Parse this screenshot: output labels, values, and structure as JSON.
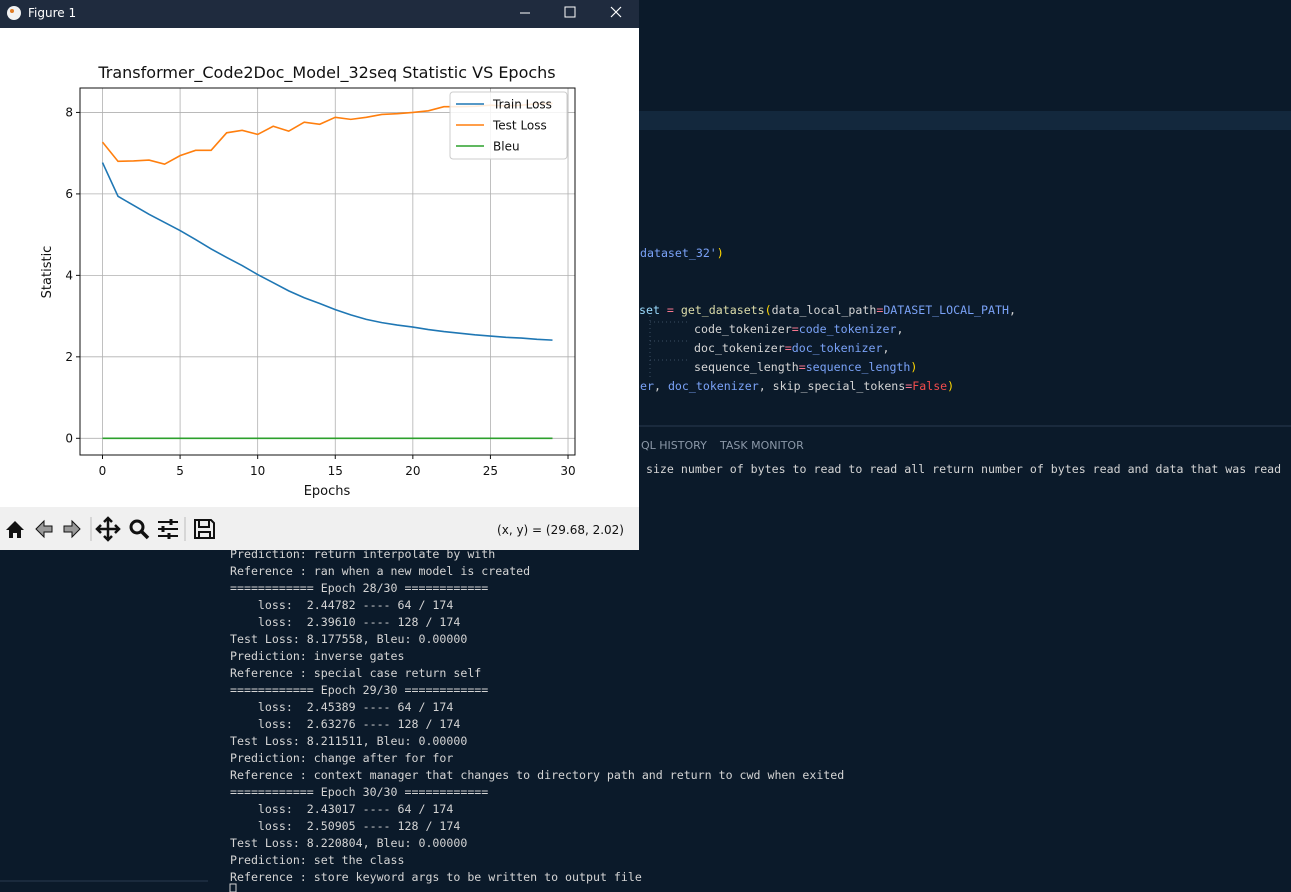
{
  "window": {
    "title": "Figure 1",
    "coordinates": "(x, y) = (29.68, 2.02)"
  },
  "chart_data": {
    "type": "line",
    "title": "Transformer_Code2Doc_Model_32seq Statistic VS Epochs",
    "xlabel": "Epochs",
    "ylabel": "Statistic",
    "x": [
      0,
      1,
      2,
      3,
      4,
      5,
      6,
      7,
      8,
      9,
      10,
      11,
      12,
      13,
      14,
      15,
      16,
      17,
      18,
      19,
      20,
      21,
      22,
      23,
      24,
      25,
      26,
      27,
      28,
      29
    ],
    "series": [
      {
        "name": "Train Loss",
        "color": "#1f77b4",
        "values": [
          6.77,
          5.94,
          5.72,
          5.5,
          5.3,
          5.1,
          4.88,
          4.65,
          4.44,
          4.24,
          4.02,
          3.82,
          3.62,
          3.45,
          3.31,
          3.16,
          3.03,
          2.92,
          2.84,
          2.78,
          2.73,
          2.67,
          2.62,
          2.58,
          2.54,
          2.51,
          2.48,
          2.46,
          2.43,
          2.41
        ]
      },
      {
        "name": "Test Loss",
        "color": "#ff7f0e",
        "values": [
          7.27,
          6.8,
          6.81,
          6.83,
          6.73,
          6.94,
          7.07,
          7.07,
          7.5,
          7.56,
          7.46,
          7.66,
          7.54,
          7.76,
          7.71,
          7.88,
          7.83,
          7.88,
          7.95,
          7.97,
          8.0,
          8.04,
          8.14,
          8.14,
          8.15,
          8.178,
          8.16,
          8.178,
          8.212,
          8.221
        ]
      },
      {
        "name": "Bleu",
        "color": "#2ca02c",
        "values": [
          0,
          0,
          0,
          0,
          0,
          0,
          0,
          0,
          0,
          0,
          0,
          0,
          0,
          0,
          0,
          0,
          0,
          0,
          0,
          0,
          0,
          0,
          0,
          0,
          0,
          0,
          0,
          0,
          0,
          0
        ]
      }
    ],
    "xlim": [
      -1.45,
      30.45
    ],
    "ylim": [
      -0.41,
      8.6
    ],
    "xticks": [
      0,
      5,
      10,
      15,
      20,
      25,
      30
    ],
    "yticks": [
      0,
      2,
      4,
      6,
      8
    ],
    "grid": true,
    "legend": "upper right"
  },
  "editor": {
    "lines": [
      [
        {
          "text": "dataset_32'",
          "color": "#7aa2f7"
        },
        {
          "text": ")",
          "color": "#ffd700"
        }
      ],
      [
        {
          "text": "aset ",
          "color": "#9cdcfe"
        },
        {
          "text": "=",
          "color": "#f7768e"
        },
        {
          "text": " get_datasets",
          "color": "#dcdcaa"
        },
        {
          "text": "(",
          "color": "#ffd700"
        },
        {
          "text": "data_local_path",
          "color": "#d4d4d4"
        },
        {
          "text": "=",
          "color": "#f7768e"
        },
        {
          "text": "DATASET_LOCAL_PATH",
          "color": "#7aa2f7"
        },
        {
          "text": ",",
          "color": "#d4d4d4"
        }
      ],
      [
        {
          "text": "code_tokenizer",
          "color": "#d4d4d4"
        },
        {
          "text": "=",
          "color": "#f7768e"
        },
        {
          "text": "code_tokenizer",
          "color": "#7aa2f7"
        },
        {
          "text": ",",
          "color": "#d4d4d4"
        }
      ],
      [
        {
          "text": "doc_tokenizer",
          "color": "#d4d4d4"
        },
        {
          "text": "=",
          "color": "#f7768e"
        },
        {
          "text": "doc_tokenizer",
          "color": "#7aa2f7"
        },
        {
          "text": ",",
          "color": "#d4d4d4"
        }
      ],
      [
        {
          "text": "sequence_length",
          "color": "#d4d4d4"
        },
        {
          "text": "=",
          "color": "#f7768e"
        },
        {
          "text": "sequence_length",
          "color": "#7aa2f7"
        },
        {
          "text": ")",
          "color": "#ffd700"
        }
      ],
      [
        {
          "text": "er",
          "color": "#7aa2f7"
        },
        {
          "text": ", ",
          "color": "#d4d4d4"
        },
        {
          "text": "doc_tokenizer",
          "color": "#7aa2f7"
        },
        {
          "text": ", skip_special_tokens",
          "color": "#d4d4d4"
        },
        {
          "text": "=",
          "color": "#f7768e"
        },
        {
          "text": "False",
          "color": "#f14c4c"
        },
        {
          "text": ")",
          "color": "#ffd700"
        }
      ]
    ]
  },
  "panel": {
    "tabs": [
      "QL HISTORY",
      "TASK MONITOR"
    ]
  },
  "terminal": {
    "first_line": "d size number of bytes to read to read all return number of bytes read and data that was read",
    "lines": [
      "Prediction: return interpolate by with",
      "Reference : ran when a new model is created",
      "============ Epoch 28/30 ============",
      "    loss:  2.44782 ---- 64 / 174",
      "    loss:  2.39610 ---- 128 / 174",
      "Test Loss: 8.177558, Bleu: 0.00000",
      "Prediction: inverse gates",
      "Reference : special case return self",
      "============ Epoch 29/30 ============",
      "    loss:  2.45389 ---- 64 / 174",
      "    loss:  2.63276 ---- 128 / 174",
      "Test Loss: 8.211511, Bleu: 0.00000",
      "Prediction: change after for for",
      "Reference : context manager that changes to directory path and return to cwd when exited",
      "============ Epoch 30/30 ============",
      "    loss:  2.43017 ---- 64 / 174",
      "    loss:  2.50905 ---- 128 / 174",
      "Test Loss: 8.220804, Bleu: 0.00000",
      "Prediction: set the class",
      "Reference : store keyword args to be written to output file"
    ]
  }
}
